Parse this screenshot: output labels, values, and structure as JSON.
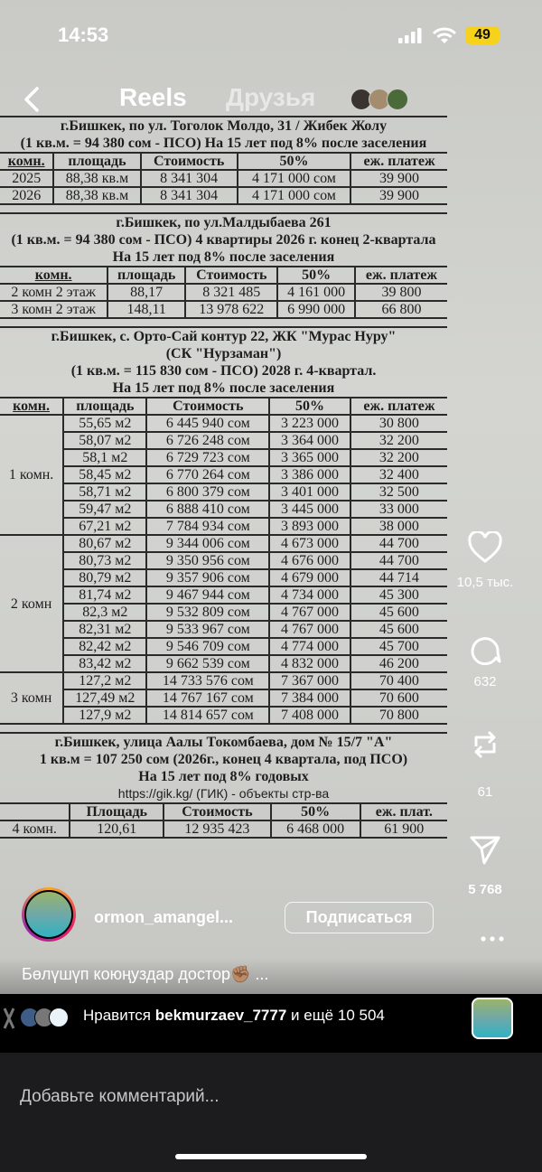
{
  "status_bar": {
    "time": "14:53",
    "battery": "49"
  },
  "header": {
    "tab_reels": "Reels",
    "tab_friends": "Друзья"
  },
  "document": {
    "section1": {
      "title": "г.Бишкек, по ул. Тоголок Молдо, 31 / Жибек Жолу",
      "subtitle": "(1 кв.м. = 94 380 сом - ПСО) На 15 лет под 8% после заселения",
      "headers": [
        "комн.",
        "площадь",
        "Стоимость",
        "50%",
        "еж. платеж"
      ],
      "rows": [
        [
          "2025",
          "88,38 кв.м",
          "8 341 304",
          "4 171 000 сом",
          "39 900"
        ],
        [
          "2026",
          "88,38 кв.м",
          "8 341 304",
          "4 171 000 сом",
          "39 900"
        ]
      ]
    },
    "section2": {
      "title": "г.Бишкек, по ул.Малдыбаева 261",
      "subtitle": "(1 кв.м. = 94 380 сом - ПСО) 4 квартиры 2026 г. конец  2-квартала",
      "terms": "На 15 лет под 8% после заселения",
      "headers": [
        "комн.",
        "площадь",
        "Стоимость",
        "50%",
        "еж. платеж"
      ],
      "rows": [
        [
          "2 комн 2 этаж",
          "88,17",
          "8 321 485",
          "4 161 000",
          "39 800"
        ],
        [
          "3 комн 2 этаж",
          "148,11",
          "13 978 622",
          "6 990 000",
          "66 800"
        ]
      ]
    },
    "section3": {
      "title": "г.Бишкек, с. Орто-Сай контур 22, ЖК \"Мурас Нуру\"",
      "developer": "(СК \"Нурзаман\")",
      "subtitle": "(1 кв.м. = 115 830 сом - ПСО) 2028 г. 4-квартал.",
      "terms": "На 15 лет под 8% после заселения",
      "headers": [
        "комн.",
        "площадь",
        "Стоимость",
        "50%",
        "еж. платеж"
      ],
      "groups": [
        {
          "label": "1 комн.",
          "rows": [
            [
              "55,65 м2",
              "6 445 940 сом",
              "3 223 000",
              "30 800"
            ],
            [
              "58,07 м2",
              "6 726 248 сом",
              "3 364 000",
              "32 200"
            ],
            [
              "58,1 м2",
              "6 729 723 сом",
              "3 365 000",
              "32 200"
            ],
            [
              "58,45 м2",
              "6 770 264 сом",
              "3 386 000",
              "32 400"
            ],
            [
              "58,71 м2",
              "6 800 379 сом",
              "3 401 000",
              "32 500"
            ],
            [
              "59,47 м2",
              "6 888 410 сом",
              "3 445 000",
              "33 000"
            ],
            [
              "67,21 м2",
              "7 784 934 сом",
              "3 893 000",
              "38 000"
            ]
          ]
        },
        {
          "label": "2 комн",
          "rows": [
            [
              "80,67 м2",
              "9 344 006 сом",
              "4 673 000",
              "44 700"
            ],
            [
              "80,73 м2",
              "9 350 956 сом",
              "4 676 000",
              "44 700"
            ],
            [
              "80,79 м2",
              "9 357 906 сом",
              "4 679 000",
              "44 714"
            ],
            [
              "81,74 м2",
              "9 467 944 сом",
              "4 734 000",
              "45 300"
            ],
            [
              "82,3 м2",
              "9 532 809 сом",
              "4 767 000",
              "45 600"
            ],
            [
              "82,31 м2",
              "9 533 967 сом",
              "4 767 000",
              "45 600"
            ],
            [
              "82,42 м2",
              "9 546 709 сом",
              "4 774 000",
              "45 700"
            ],
            [
              "83,42 м2",
              "9 662 539 сом",
              "4 832 000",
              "46 200"
            ]
          ]
        },
        {
          "label": "3 комн",
          "rows": [
            [
              "127,2 м2",
              "14 733 576 сом",
              "7 367 000",
              "70 400"
            ],
            [
              "127,49 м2",
              "14 767 167 сом",
              "7 384 000",
              "70 600"
            ],
            [
              "127,9 м2",
              "14 814 657 сом",
              "7 408 000",
              "70 800"
            ]
          ]
        }
      ]
    },
    "section4": {
      "title": "г.Бишкек, улица Аалы Токомбаева, дом № 15/7 \"А\"",
      "subtitle": "1 кв.м = 107 250 сом (2026г., конец 4 квартала, под ПСО)",
      "terms": "На 15 лет под 8% годовых",
      "url": "https://gik.kg/ (ГИК) - объекты стр-ва",
      "headers": [
        "",
        "Площадь",
        "Стоимость",
        "50%",
        "еж. плат."
      ],
      "rows": [
        [
          "4 комн.",
          "120,61",
          "12 935 423",
          "6 468 000",
          "61 900"
        ]
      ]
    }
  },
  "actions": {
    "likes": "10,5 тыс.",
    "comments": "632",
    "reposts": "61",
    "shares": "5 768"
  },
  "author": {
    "username": "ormon_amangel...",
    "follow_label": "Подписаться"
  },
  "caption": "Бөлүшүп коюңуздар достор✊🏽 ...",
  "liked_by": {
    "prefix": "Нравится ",
    "user": "bekmurzaev_7777",
    "suffix": " и ещё 10 504"
  },
  "comment_input": {
    "placeholder": "Добавьте комментарий..."
  }
}
